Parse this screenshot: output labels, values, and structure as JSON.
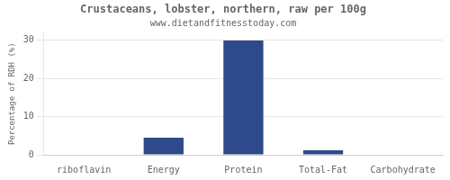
{
  "chart_data": {
    "type": "bar",
    "title": "Crustaceans, lobster, northern, raw per 100g",
    "subtitle": "www.dietandfitnesstoday.com",
    "ylabel": "Percentage of RDH (%)",
    "categories": [
      "riboflavin",
      "Energy",
      "Protein",
      "Total-Fat",
      "Carbohydrate"
    ],
    "values": [
      0,
      4.5,
      30,
      1.2,
      0
    ],
    "color": "#2e4a8a",
    "ylim": [
      0,
      32
    ],
    "yticks": [
      0,
      10,
      20,
      30
    ],
    "grid": true
  }
}
